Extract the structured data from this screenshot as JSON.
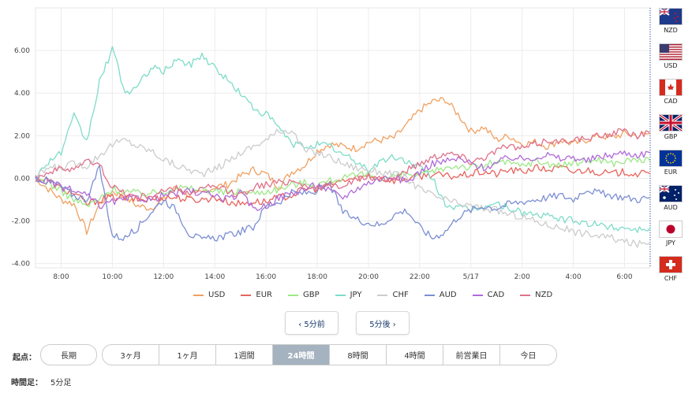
{
  "chart_data": {
    "type": "line",
    "ylim": [
      -4.2,
      8.0
    ],
    "y_ticks": [
      "6.00",
      "4.00",
      "2.00",
      "0.00",
      "-2.00",
      "-4.00"
    ],
    "y_tick_values": [
      6,
      4,
      2,
      0,
      -2,
      -4
    ],
    "x_ticks": [
      "8:00",
      "10:00",
      "12:00",
      "14:00",
      "16:00",
      "18:00",
      "20:00",
      "22:00",
      "5/17",
      "2:00",
      "4:00",
      "6:00"
    ],
    "x_tick_hours": [
      1,
      3,
      5,
      7,
      9,
      11,
      13,
      15,
      17,
      19,
      21,
      23
    ],
    "x_range_hours": [
      0,
      24
    ],
    "series": [
      {
        "name": "USD",
        "color": "#f0a060",
        "values": [
          0,
          -0.5,
          -1,
          -1.2,
          -2.5,
          -1.2,
          -0.6,
          -0.9,
          -1.3,
          -1.4,
          -1,
          -0.4,
          -0.8,
          -0.7,
          -0.4,
          -0.3,
          0.1,
          0.4,
          0.2,
          -0.4,
          0.3,
          0.6,
          1.3,
          1.6,
          1.5,
          1.4,
          1.7,
          1.8,
          1.9,
          2.5,
          3.2,
          3.6,
          3.7,
          3.0,
          2.2,
          2.4,
          1.8,
          2.0,
          1.6,
          1.7,
          1.5,
          1.8,
          1.6,
          1.8,
          2.0,
          1.9,
          2.1,
          2.0,
          2.1
        ]
      },
      {
        "name": "EUR",
        "color": "#e8635c",
        "values": [
          0,
          -0.1,
          -0.5,
          -0.7,
          -1.2,
          -1.0,
          -0.9,
          -0.9,
          -1.0,
          -1.0,
          -0.9,
          -0.9,
          -1.0,
          -1.0,
          -0.9,
          -1.1,
          -1.2,
          -1.1,
          -1.1,
          -0.9,
          -0.8,
          -0.5,
          -0.5,
          -0.3,
          -0.1,
          0.0,
          0.1,
          0.0,
          -0.1,
          0.0,
          0.1,
          0.2,
          0.1,
          0.1,
          0.2,
          0.3,
          0.2,
          0.4,
          0.3,
          0.5,
          0.4,
          0.5,
          0.3,
          0.4,
          0.3,
          0.2,
          0.3,
          0.2,
          0.2
        ]
      },
      {
        "name": "GBP",
        "color": "#9ce888",
        "values": [
          0,
          -0.2,
          -0.6,
          -1.0,
          -1.3,
          -1.0,
          -0.5,
          -0.6,
          -0.7,
          -0.7,
          -0.6,
          -0.4,
          -0.5,
          -0.5,
          -0.6,
          -0.7,
          -0.6,
          -0.7,
          -0.6,
          -0.5,
          -0.3,
          -0.2,
          -0.3,
          -0.1,
          0.0,
          0.1,
          0.2,
          0.0,
          0.1,
          0.2,
          0.1,
          0.3,
          0.5,
          0.6,
          0.5,
          0.6,
          0.8,
          0.7,
          0.6,
          0.8,
          0.7,
          0.6,
          0.7,
          0.8,
          0.9,
          0.7,
          0.8,
          0.9,
          0.8
        ]
      },
      {
        "name": "JPY",
        "color": "#7edcc8",
        "values": [
          0,
          0.8,
          1.2,
          2.9,
          1.7,
          4.5,
          6.1,
          4.0,
          4.3,
          5.2,
          5.0,
          5.6,
          5.3,
          5.8,
          5.2,
          4.6,
          4.0,
          3.3,
          3.0,
          2.4,
          1.6,
          1.5,
          1.6,
          1.5,
          1.1,
          0.8,
          0.4,
          0.8,
          1.0,
          0.8,
          0.5,
          0.0,
          -1.2,
          -1.4,
          -1.5,
          -1.3,
          -1.2,
          -1.4,
          -1.6,
          -1.7,
          -1.8,
          -1.9,
          -2.0,
          -2.1,
          -2.2,
          -2.3,
          -2.3,
          -2.4,
          -2.3
        ]
      },
      {
        "name": "CHF",
        "color": "#cccccc",
        "values": [
          0,
          0.5,
          0.5,
          0.7,
          0.6,
          1.1,
          1.6,
          1.8,
          1.5,
          1.3,
          0.9,
          0.6,
          0.4,
          0.2,
          0.4,
          0.8,
          1.2,
          1.5,
          1.8,
          2.2,
          2.3,
          1.3,
          1.2,
          1.0,
          0.7,
          0.5,
          0.4,
          0.3,
          0.2,
          0.0,
          -0.5,
          -0.8,
          -1.0,
          -1.2,
          -1.3,
          -1.4,
          -1.5,
          -1.7,
          -1.8,
          -2.0,
          -2.2,
          -2.3,
          -2.5,
          -2.6,
          -2.7,
          -2.8,
          -3.0,
          -3.1,
          -3.0
        ]
      },
      {
        "name": "AUD",
        "color": "#7b8ed4",
        "values": [
          0,
          -0.1,
          -0.4,
          -0.8,
          -1.0,
          0.5,
          -2.7,
          -2.8,
          -2.3,
          -1.6,
          -1.0,
          -1.5,
          -2.6,
          -2.9,
          -2.8,
          -2.7,
          -2.5,
          -2.3,
          -1.3,
          -1.1,
          -0.7,
          -0.7,
          -0.6,
          -0.3,
          -1.6,
          -1.9,
          -2.1,
          -2.2,
          -1.7,
          -1.5,
          -2.3,
          -2.8,
          -2.5,
          -1.8,
          -1.5,
          -1.3,
          -1.4,
          -1.2,
          -1.1,
          -1.0,
          -0.9,
          -0.8,
          -1.0,
          -0.5,
          -0.7,
          -0.8,
          -0.9,
          -1.0,
          -0.9
        ]
      },
      {
        "name": "CAD",
        "color": "#b06ad8",
        "values": [
          0,
          -0.2,
          -0.4,
          -0.6,
          -0.8,
          -1.3,
          -1.1,
          -1.0,
          -0.9,
          -1.0,
          -0.8,
          -0.7,
          -0.6,
          -0.7,
          -0.8,
          -1.0,
          -0.7,
          -1.4,
          -1.3,
          -0.9,
          -0.7,
          -0.5,
          -0.3,
          -0.6,
          -0.9,
          -0.5,
          -0.2,
          0.0,
          0.1,
          -0.2,
          0.3,
          0.7,
          0.8,
          0.9,
          0.7,
          0.5,
          0.7,
          1.0,
          0.9,
          1.0,
          1.1,
          0.9,
          1.0,
          0.8,
          1.0,
          1.1,
          1.2,
          1.1,
          1.2
        ]
      },
      {
        "name": "NZD",
        "color": "#e0708a",
        "values": [
          0,
          0.3,
          0.4,
          0.5,
          0.8,
          0.6,
          -0.4,
          -0.7,
          -0.9,
          -0.8,
          -0.6,
          -0.5,
          -0.7,
          -0.5,
          -0.4,
          -0.6,
          -0.8,
          -0.4,
          -0.3,
          -0.2,
          -0.1,
          -0.3,
          -0.5,
          -0.4,
          -0.3,
          -0.1,
          0.1,
          -0.1,
          0.0,
          0.4,
          0.7,
          1.0,
          1.2,
          1.1,
          0.8,
          1.0,
          1.3,
          1.5,
          1.4,
          1.6,
          1.8,
          1.7,
          1.9,
          1.8,
          2.0,
          2.1,
          2.2,
          2.0,
          2.1
        ]
      }
    ]
  },
  "flags": [
    {
      "code": "NZD",
      "icon": "nz-flag-icon"
    },
    {
      "code": "USD",
      "icon": "us-flag-icon"
    },
    {
      "code": "CAD",
      "icon": "ca-flag-icon"
    },
    {
      "code": "GBP",
      "icon": "gb-flag-icon"
    },
    {
      "code": "EUR",
      "icon": "eu-flag-icon"
    },
    {
      "code": "AUD",
      "icon": "au-flag-icon"
    },
    {
      "code": "JPY",
      "icon": "jp-flag-icon"
    },
    {
      "code": "CHF",
      "icon": "ch-flag-icon"
    }
  ],
  "pager": {
    "prev": "‹ 5分前",
    "next": "5分後 ›"
  },
  "range": {
    "label": "起点：",
    "all": "長期",
    "options": [
      "3ヶ月",
      "1ヶ月",
      "1週間",
      "24時間",
      "8時間",
      "4時間",
      "前営業日",
      "今日"
    ],
    "active": "24時間"
  },
  "interval": {
    "label": "時間足：",
    "value": "5分足"
  }
}
